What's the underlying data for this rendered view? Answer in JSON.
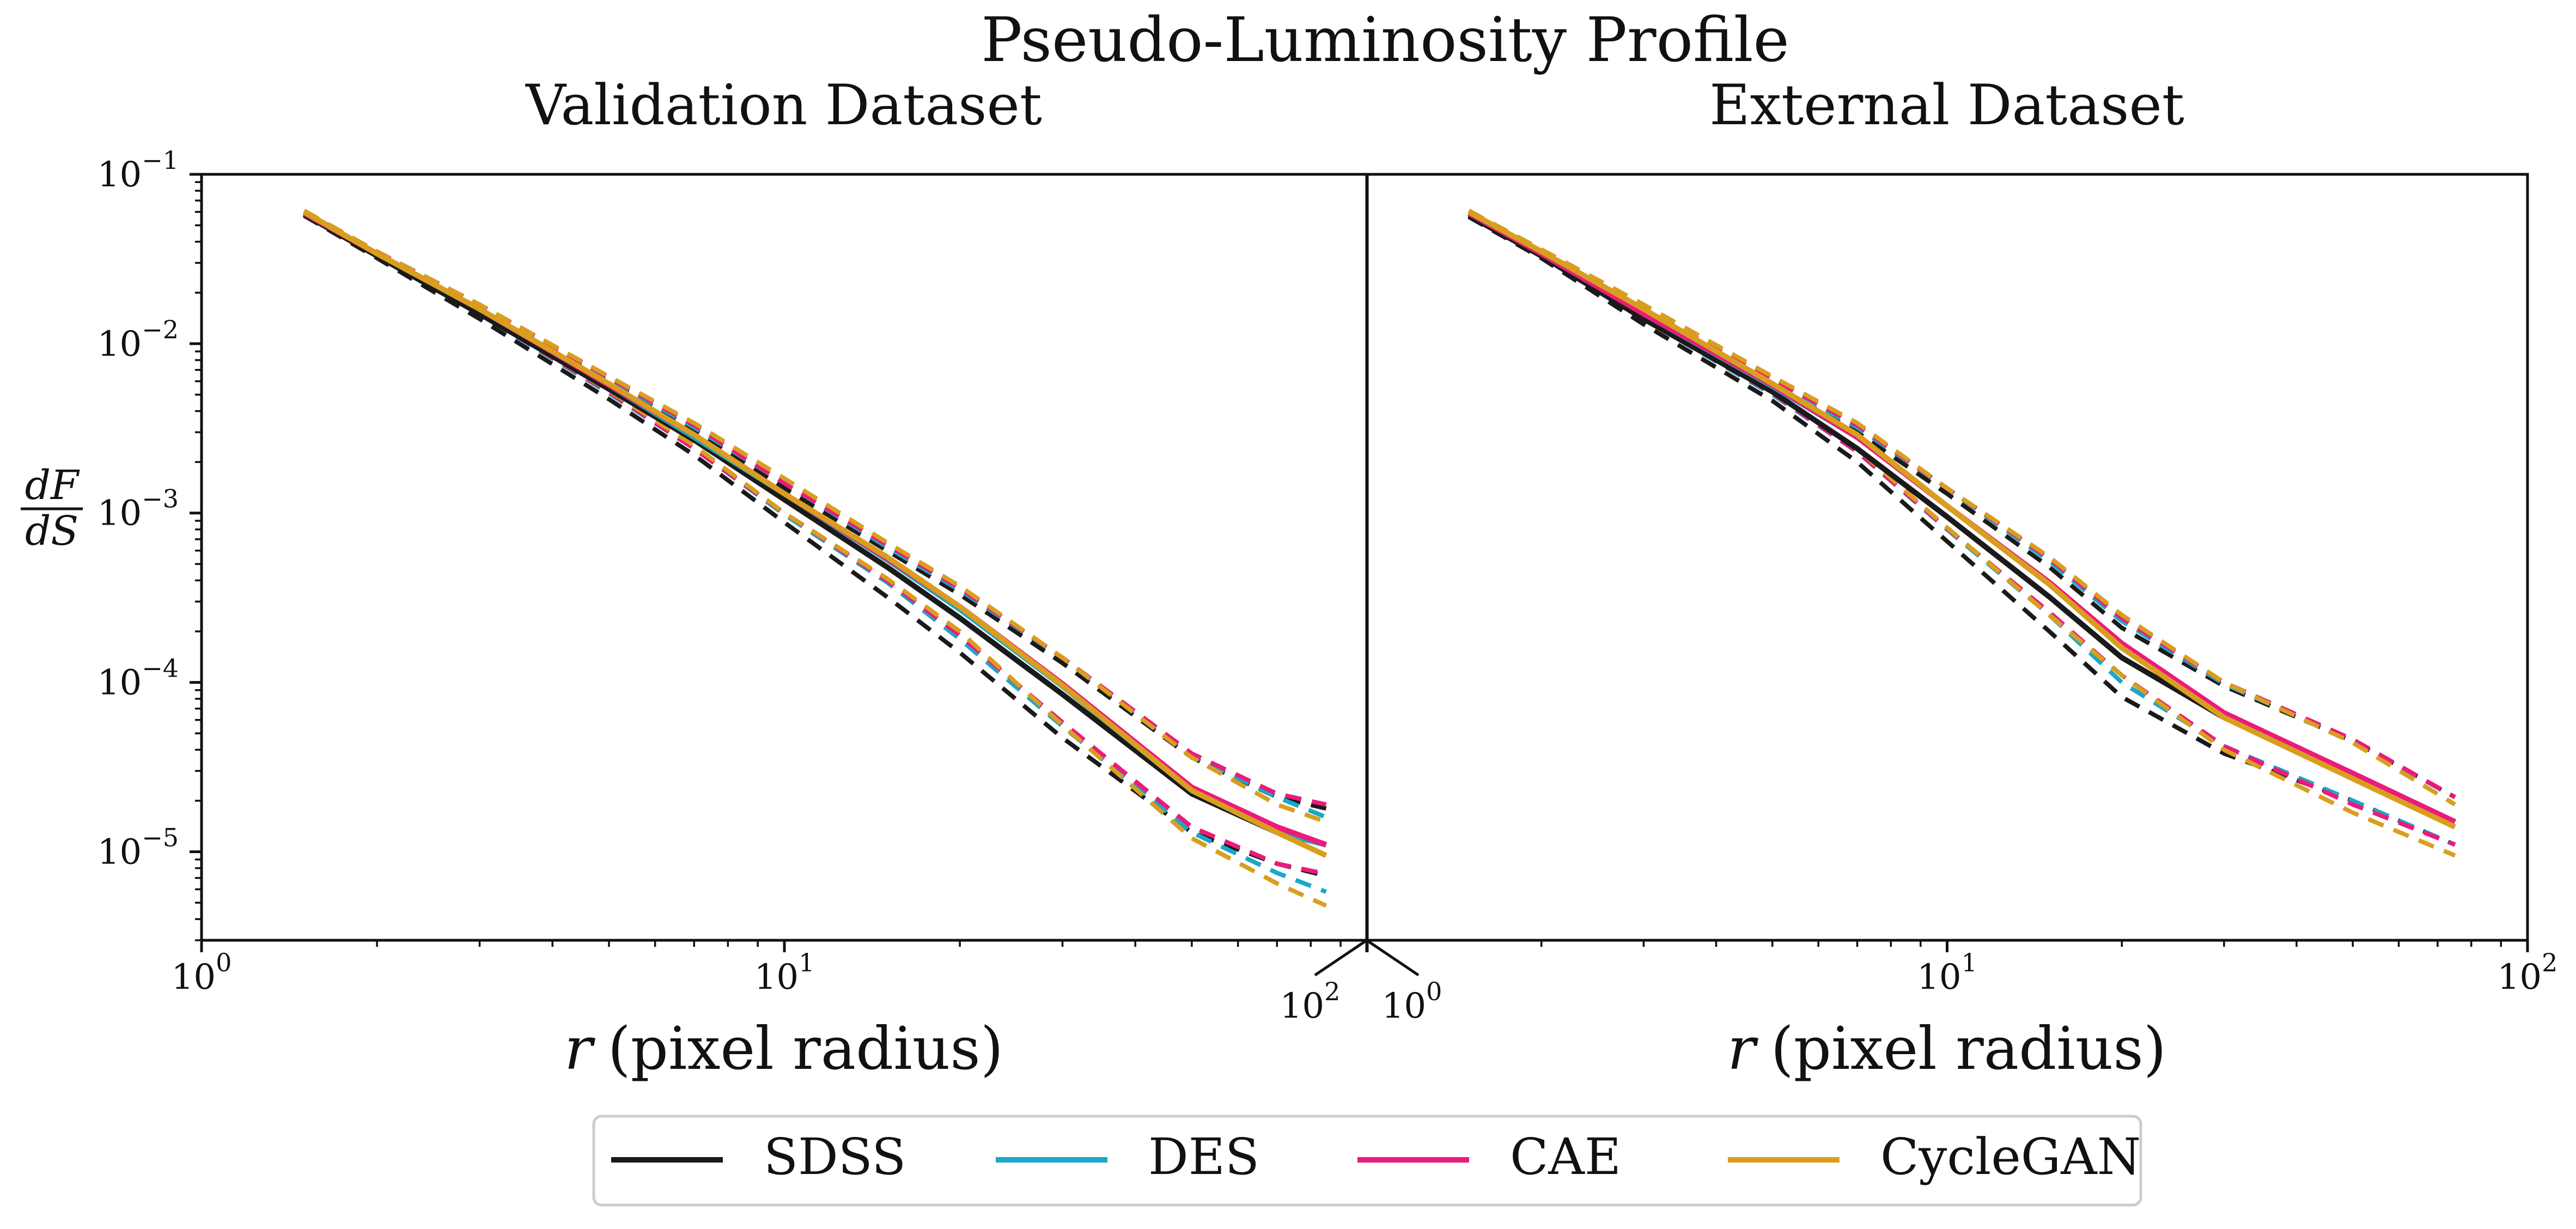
{
  "figure_title": "Pseudo-Luminosity Profile",
  "ylabel": {
    "numerator": "dF",
    "denominator": "dS"
  },
  "legend": [
    {
      "label": "SDSS",
      "color": "#1a1a1a"
    },
    {
      "label": "DES",
      "color": "#1aa7c8"
    },
    {
      "label": "CAE",
      "color": "#ec1a7b"
    },
    {
      "label": "CycleGAN",
      "color": "#d99e1f"
    }
  ],
  "y_ticks": [
    {
      "base": "10",
      "exp": "−1"
    },
    {
      "base": "10",
      "exp": "−2"
    },
    {
      "base": "10",
      "exp": "−3"
    },
    {
      "base": "10",
      "exp": "−4"
    },
    {
      "base": "10",
      "exp": "−5"
    }
  ],
  "chart_data": [
    {
      "type": "line",
      "title": "Validation Dataset",
      "xlabel_var": "r",
      "xlabel_text": "(pixel radius)",
      "x_scale": "log",
      "y_scale": "log",
      "xlim": [
        1,
        100
      ],
      "ylim": [
        3e-06,
        0.1
      ],
      "x_ticks": [
        {
          "base": "10",
          "exp": "0"
        },
        {
          "base": "10",
          "exp": "1"
        },
        {
          "base": "10",
          "exp": "2"
        }
      ],
      "grid": false,
      "x": [
        1.5,
        2,
        3,
        5,
        7,
        10,
        15,
        20,
        30,
        50,
        70,
        85
      ],
      "series": [
        {
          "name": "SDSS",
          "color": "#1a1a1a",
          "mean": [
            0.058,
            0.033,
            0.015,
            0.0054,
            0.0027,
            0.0012,
            0.00048,
            0.00024,
            8.5e-05,
            2.2e-05,
            1.3e-05,
            1.1e-05
          ],
          "upper": [
            0.059,
            0.034,
            0.016,
            0.006,
            0.0031,
            0.0014,
            0.0006,
            0.00033,
            0.00013,
            3.6e-05,
            2.1e-05,
            1.8e-05
          ],
          "lower": [
            0.057,
            0.032,
            0.014,
            0.0047,
            0.0022,
            0.00088,
            0.00032,
            0.00015,
            4.7e-05,
            1.3e-05,
            8.5e-06,
            7.2e-06
          ]
        },
        {
          "name": "DES",
          "color": "#1aa7c8",
          "mean": [
            0.059,
            0.034,
            0.016,
            0.0057,
            0.0028,
            0.0013,
            0.00053,
            0.00027,
            9.5e-05,
            2.3e-05,
            1.3e-05,
            1.1e-05
          ],
          "upper": [
            0.06,
            0.035,
            0.016,
            0.0062,
            0.0032,
            0.0015,
            0.00063,
            0.00035,
            0.00014,
            3.7e-05,
            2.1e-05,
            1.6e-05
          ],
          "lower": [
            0.058,
            0.033,
            0.015,
            0.0051,
            0.0024,
            0.00098,
            0.00039,
            0.00018,
            5.5e-05,
            1.3e-05,
            7.5e-06,
            5.8e-06
          ]
        },
        {
          "name": "CAE",
          "color": "#ec1a7b",
          "mean": [
            0.059,
            0.034,
            0.016,
            0.0057,
            0.0029,
            0.0013,
            0.00054,
            0.00028,
            9.8e-05,
            2.4e-05,
            1.4e-05,
            1.1e-05
          ],
          "upper": [
            0.06,
            0.035,
            0.017,
            0.0063,
            0.0033,
            0.0015,
            0.00065,
            0.00036,
            0.00014,
            3.8e-05,
            2.2e-05,
            1.9e-05
          ],
          "lower": [
            0.058,
            0.033,
            0.015,
            0.0052,
            0.0024,
            0.001,
            0.0004,
            0.00019,
            5.8e-05,
            1.4e-05,
            8.5e-06,
            7.4e-06
          ]
        },
        {
          "name": "CycleGAN",
          "color": "#d99e1f",
          "mean": [
            0.06,
            0.034,
            0.016,
            0.0058,
            0.0029,
            0.0013,
            0.00055,
            0.00028,
            9.6e-05,
            2.3e-05,
            1.3e-05,
            9.5e-06
          ],
          "upper": [
            0.061,
            0.035,
            0.017,
            0.0064,
            0.0034,
            0.0016,
            0.00067,
            0.00037,
            0.00014,
            3.6e-05,
            1.9e-05,
            1.5e-05
          ],
          "lower": [
            0.059,
            0.033,
            0.015,
            0.0053,
            0.0025,
            0.001,
            0.00041,
            0.0002,
            5.6e-05,
            1.2e-05,
            6.5e-06,
            4.8e-06
          ]
        }
      ]
    },
    {
      "type": "line",
      "title": "External Dataset",
      "xlabel_var": "r",
      "xlabel_text": "(pixel radius)",
      "x_scale": "log",
      "y_scale": "log",
      "xlim": [
        1,
        100
      ],
      "ylim": [
        3e-06,
        0.1
      ],
      "x_ticks": [
        {
          "base": "10",
          "exp": "0"
        },
        {
          "base": "10",
          "exp": "1"
        },
        {
          "base": "10",
          "exp": "2"
        }
      ],
      "grid": false,
      "x": [
        1.5,
        2,
        3,
        5,
        7,
        10,
        15,
        20,
        30,
        50,
        75
      ],
      "series": [
        {
          "name": "SDSS",
          "color": "#1a1a1a",
          "mean": [
            0.057,
            0.033,
            0.014,
            0.0052,
            0.0024,
            0.00095,
            0.00032,
            0.00014,
            6.2e-05,
            2.9e-05,
            1.5e-05
          ],
          "upper": [
            0.058,
            0.034,
            0.015,
            0.0058,
            0.003,
            0.0013,
            0.00048,
            0.00021,
            9.5e-05,
            4.5e-05,
            2.1e-05
          ],
          "lower": [
            0.056,
            0.032,
            0.013,
            0.0046,
            0.002,
            0.00068,
            0.0002,
            8.2e-05,
            3.8e-05,
            2e-05,
            1.1e-05
          ]
        },
        {
          "name": "DES",
          "color": "#1aa7c8",
          "mean": [
            0.059,
            0.034,
            0.015,
            0.0056,
            0.0028,
            0.0011,
            0.00038,
            0.00016,
            6.5e-05,
            2.9e-05,
            1.5e-05
          ],
          "upper": [
            0.06,
            0.035,
            0.016,
            0.006,
            0.0032,
            0.0014,
            0.00052,
            0.00023,
            9.8e-05,
            4.5e-05,
            2.1e-05
          ],
          "lower": [
            0.058,
            0.033,
            0.014,
            0.005,
            0.0023,
            0.0008,
            0.00025,
            0.0001,
            4.2e-05,
            2e-05,
            1.1e-05
          ]
        },
        {
          "name": "CAE",
          "color": "#ec1a7b",
          "mean": [
            0.059,
            0.034,
            0.015,
            0.0057,
            0.0028,
            0.0011,
            0.00039,
            0.00017,
            6.6e-05,
            2.9e-05,
            1.5e-05
          ],
          "upper": [
            0.06,
            0.035,
            0.016,
            0.0062,
            0.0033,
            0.0014,
            0.00054,
            0.00024,
            0.0001,
            4.6e-05,
            2.1e-05
          ],
          "lower": [
            0.058,
            0.033,
            0.014,
            0.0051,
            0.0023,
            0.00081,
            0.00026,
            0.00011,
            4.2e-05,
            1.9e-05,
            1.1e-05
          ]
        },
        {
          "name": "CycleGAN",
          "color": "#d99e1f",
          "mean": [
            0.06,
            0.035,
            0.016,
            0.0058,
            0.0029,
            0.0011,
            0.00038,
            0.00016,
            6.2e-05,
            2.7e-05,
            1.4e-05
          ],
          "upper": [
            0.061,
            0.036,
            0.017,
            0.0064,
            0.0034,
            0.0014,
            0.00055,
            0.00025,
            0.0001,
            4.4e-05,
            1.9e-05
          ],
          "lower": [
            0.059,
            0.034,
            0.015,
            0.0052,
            0.0024,
            0.00082,
            0.00025,
            0.00011,
            4e-05,
            1.7e-05,
            9.5e-06
          ]
        }
      ]
    }
  ]
}
